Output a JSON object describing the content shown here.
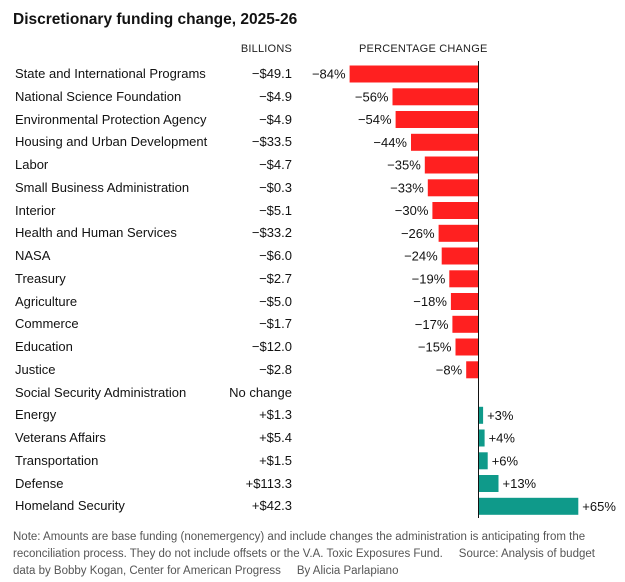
{
  "title": "Discretionary funding change, 2025-26",
  "columns": {
    "amount_header": "BILLIONS",
    "percent_header": "PERCENTAGE CHANGE"
  },
  "colors": {
    "negative": "#ff2020",
    "positive": "#0f9a8a",
    "axis": "#121212"
  },
  "chart_data": {
    "type": "bar",
    "orientation": "horizontal",
    "title": "Discretionary funding change, 2025-26",
    "categories": [
      "State and International Programs",
      "National Science Foundation",
      "Environmental Protection Agency",
      "Housing and Urban Development",
      "Labor",
      "Small Business Administration",
      "Interior",
      "Health and Human Services",
      "NASA",
      "Treasury",
      "Agriculture",
      "Commerce",
      "Education",
      "Justice",
      "Social Security Administration",
      "Energy",
      "Veterans Affairs",
      "Transportation",
      "Defense",
      "Homeland Security"
    ],
    "amounts": [
      "−$49.1",
      "−$4.9",
      "−$4.9",
      "−$33.5",
      "−$4.7",
      "−$0.3",
      "−$5.1",
      "−$33.2",
      "−$6.0",
      "−$2.7",
      "−$5.0",
      "−$1.7",
      "−$12.0",
      "−$2.8",
      "No change",
      "+$1.3",
      "+$5.4",
      "+$1.5",
      "+$113.3",
      "+$42.3"
    ],
    "values": [
      -84,
      -56,
      -54,
      -44,
      -35,
      -33,
      -30,
      -26,
      -24,
      -19,
      -18,
      -17,
      -15,
      -8,
      0,
      3,
      4,
      6,
      13,
      65
    ],
    "value_labels": [
      "−84%",
      "−56%",
      "−54%",
      "−44%",
      "−35%",
      "−33%",
      "−30%",
      "−26%",
      "−24%",
      "−19%",
      "−18%",
      "−17%",
      "−15%",
      "−8%",
      "",
      "+3%",
      "+4%",
      "+6%",
      "+13%",
      "+65%"
    ],
    "xlim": [
      -84,
      65
    ]
  },
  "note": {
    "text": "Note: Amounts are base funding (nonemergency) and include changes the administration is anticipating from the reconciliation process. They do not include offsets or the V.A. Toxic Exposures Fund.",
    "source": "Source: Analysis of budget data by Bobby Kogan, Center for American Progress",
    "byline": "By Alicia Parlapiano"
  }
}
